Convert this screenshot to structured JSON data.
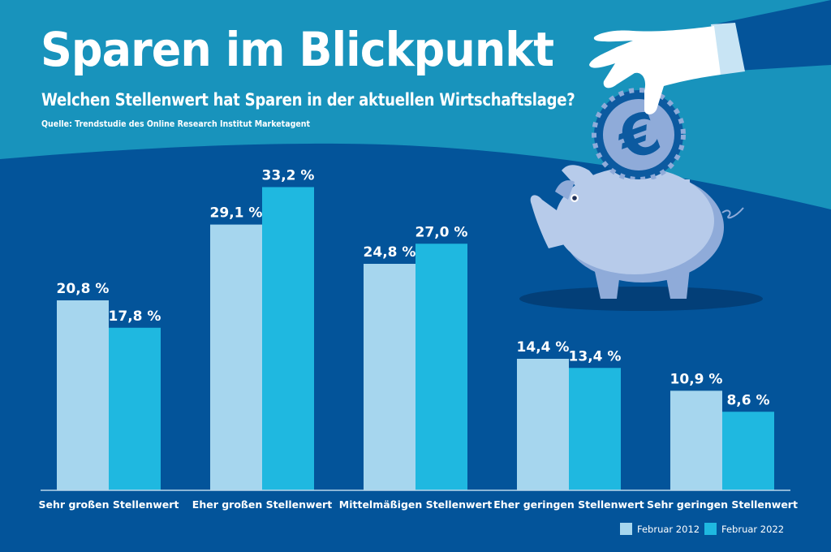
{
  "header": {
    "title": "Sparen im Blickpunkt",
    "subtitle": "Welchen Stellenwert hat Sparen in der aktuellen Wirtschaftslage?",
    "source": "Quelle: Trendstudie des Online Research Institut Marketagent"
  },
  "illustration": {
    "elements": [
      "hand-icon",
      "euro-coin-icon",
      "piggy-bank-icon"
    ]
  },
  "colors": {
    "background_top": "#1893bc",
    "background_bottom": "#03549a",
    "series_2012": "#a6d6ee",
    "series_2022": "#1fb8e0",
    "text": "#ffffff",
    "piggy": "#b7cbea",
    "piggy_shade": "#8fabd9",
    "coin_dark": "#0c5aa0",
    "sleeve": "#04549a",
    "cuff": "#c8e4f4"
  },
  "chart_data": {
    "type": "bar",
    "title": "Sparen im Blickpunkt",
    "subtitle": "Welchen Stellenwert hat Sparen in der aktuellen Wirtschaftslage?",
    "xlabel": "",
    "ylabel": "",
    "ylim": [
      0,
      40
    ],
    "grid": false,
    "legend_position": "bottom-right",
    "categories": [
      "Sehr großen Stellenwert",
      "Eher großen Stellenwert",
      "Mittelmäßigen Stellenwert",
      "Eher geringen Stellenwert",
      "Sehr geringen Stellenwert"
    ],
    "series": [
      {
        "name": "Februar 2012",
        "values": [
          20.8,
          29.1,
          24.8,
          14.4,
          10.9
        ],
        "labels": [
          "20,8 %",
          "29,1 %",
          "24,8 %",
          "14,4 %",
          "10,9 %"
        ]
      },
      {
        "name": "Februar 2022",
        "values": [
          17.8,
          33.2,
          27.0,
          13.4,
          8.6
        ],
        "labels": [
          "17,8 %",
          "33,2 %",
          "27,0 %",
          "13,4 %",
          "8,6 %"
        ]
      }
    ]
  }
}
